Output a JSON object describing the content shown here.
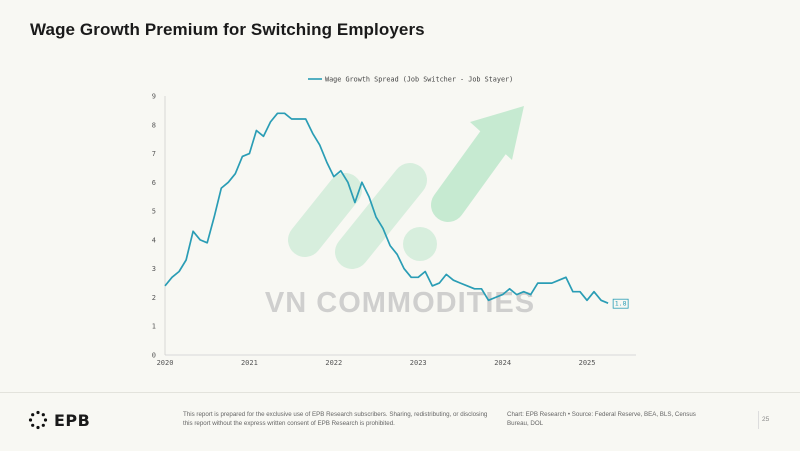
{
  "title": "Wage Growth Premium for Switching Employers",
  "watermark": "VN COMMODITIES",
  "footer": {
    "logo_text": "EPB",
    "disclaimer": "This report is prepared for the exclusive use of EPB Research subscribers. Sharing, redistributing, or disclosing this report without the express written consent of EPB Research is prohibited.",
    "source": "Chart: EPB Research  •  Source: Federal Reserve, BEA, BLS, Census Bureau, DOL",
    "page_number": "25"
  },
  "colors": {
    "line": "#2a9db5",
    "accent_green": "#8fd6a8",
    "text": "#1a1a1a"
  },
  "chart_data": {
    "type": "line",
    "title": "",
    "xlabel": "",
    "ylabel": "",
    "ylim": [
      0,
      9
    ],
    "xlim": [
      2020,
      2025.58
    ],
    "yticks": [
      "0",
      "1",
      "2",
      "3",
      "4",
      "5",
      "6",
      "7",
      "8",
      "9"
    ],
    "xticks": [
      {
        "label": "2020",
        "value": 2020
      },
      {
        "label": "2021",
        "value": 2021
      },
      {
        "label": "2022",
        "value": 2022
      },
      {
        "label": "2023",
        "value": 2023
      },
      {
        "label": "2024",
        "value": 2024
      },
      {
        "label": "2025",
        "value": 2025
      }
    ],
    "grid": false,
    "legend_position": "top-center",
    "end_label": "1.8",
    "series": [
      {
        "name": "Wage Growth Spread (Job Switcher - Job Stayer)",
        "x": [
          2020.0,
          2020.083,
          2020.167,
          2020.25,
          2020.333,
          2020.417,
          2020.5,
          2020.583,
          2020.667,
          2020.75,
          2020.833,
          2020.917,
          2021.0,
          2021.083,
          2021.167,
          2021.25,
          2021.333,
          2021.417,
          2021.5,
          2021.583,
          2021.667,
          2021.75,
          2021.833,
          2021.917,
          2022.0,
          2022.083,
          2022.167,
          2022.25,
          2022.333,
          2022.417,
          2022.5,
          2022.583,
          2022.667,
          2022.75,
          2022.833,
          2022.917,
          2023.0,
          2023.083,
          2023.167,
          2023.25,
          2023.333,
          2023.417,
          2023.5,
          2023.583,
          2023.667,
          2023.75,
          2023.833,
          2023.917,
          2024.0,
          2024.083,
          2024.167,
          2024.25,
          2024.333,
          2024.417,
          2024.5,
          2024.583,
          2024.667,
          2024.75,
          2024.833,
          2024.917,
          2025.0,
          2025.083,
          2025.167,
          2025.25
        ],
        "values": [
          2.4,
          2.7,
          2.9,
          3.3,
          4.3,
          4.0,
          3.9,
          4.8,
          5.8,
          6.0,
          6.3,
          6.9,
          7.0,
          7.8,
          7.6,
          8.1,
          8.4,
          8.4,
          8.2,
          8.2,
          8.2,
          7.7,
          7.3,
          6.7,
          6.2,
          6.4,
          6.0,
          5.3,
          6.0,
          5.5,
          4.8,
          4.4,
          3.8,
          3.5,
          3.0,
          2.7,
          2.7,
          2.9,
          2.4,
          2.5,
          2.8,
          2.6,
          2.5,
          2.4,
          2.3,
          2.3,
          1.9,
          2.0,
          2.1,
          2.3,
          2.1,
          2.2,
          2.1,
          2.5,
          2.5,
          2.5,
          2.6,
          2.7,
          2.2,
          2.2,
          1.9,
          2.2,
          1.9,
          1.8
        ]
      }
    ]
  }
}
